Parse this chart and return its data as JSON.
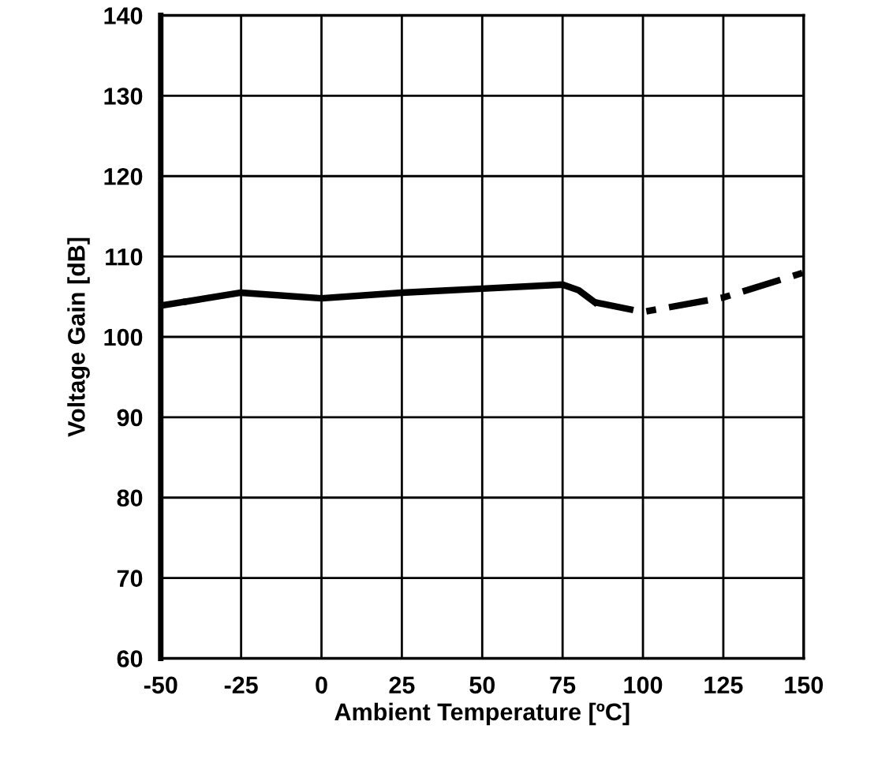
{
  "chart_data": {
    "type": "line",
    "xlabel": "Ambient Temperature [ºC]",
    "ylabel": "Voltage Gain [dB]",
    "xlim": [
      -50,
      150
    ],
    "xticks": [
      -50,
      -25,
      0,
      25,
      50,
      75,
      100,
      125,
      150
    ],
    "ylim": [
      60,
      140
    ],
    "yticks": [
      60,
      70,
      80,
      90,
      100,
      110,
      120,
      130,
      140
    ],
    "grid": true,
    "legend": false,
    "series": [
      {
        "color": "#000000",
        "line_style": "dashed",
        "x": [
          -50,
          -42
        ],
        "values": [
          103.9,
          104.4
        ]
      },
      {
        "color": "#000000",
        "line_style": "solid",
        "x": [
          -42,
          -25,
          0,
          25,
          50,
          75,
          80,
          85
        ],
        "values": [
          104.4,
          105.5,
          104.8,
          105.5,
          106.0,
          106.5,
          105.8,
          104.3
        ]
      },
      {
        "color": "#000000",
        "line_style": "dashed",
        "x": [
          85,
          100,
          125,
          150
        ],
        "values": [
          104.3,
          103.1,
          104.9,
          108.0
        ]
      }
    ]
  }
}
